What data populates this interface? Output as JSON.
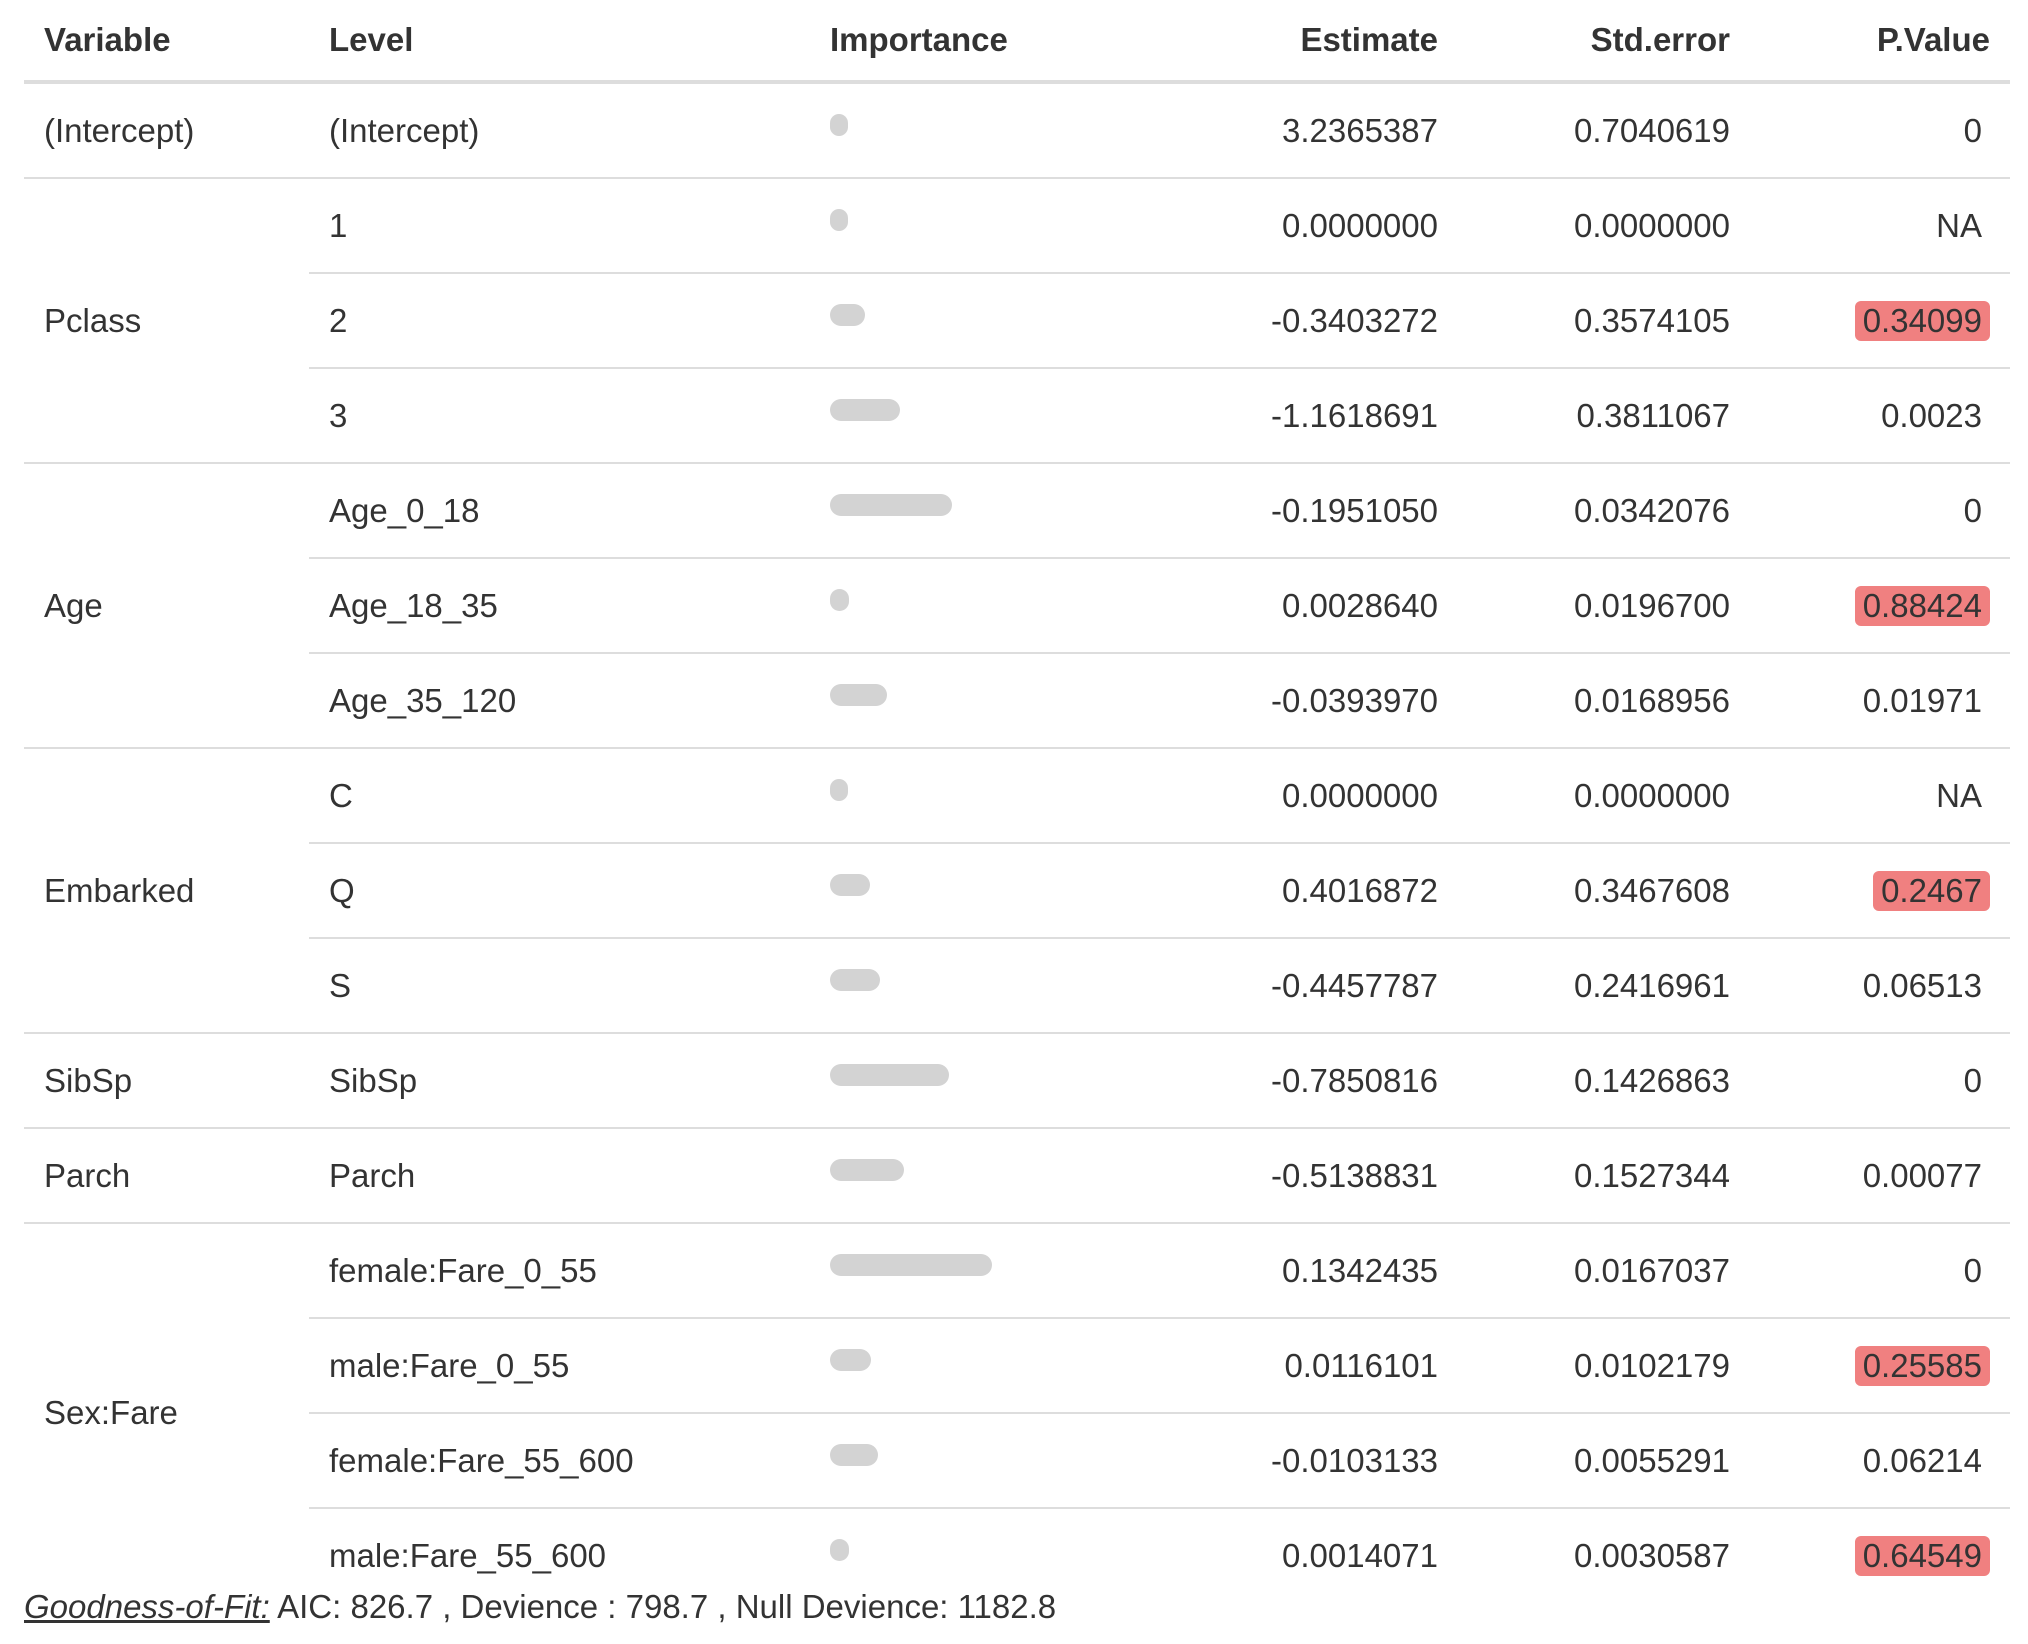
{
  "headers": {
    "variable": "Variable",
    "level": "Level",
    "importance": "Importance",
    "estimate": "Estimate",
    "std_error": "Std.error",
    "p_value": "P.Value"
  },
  "colors": {
    "importance_bar": "#d3d3d3",
    "significant_highlight": "#f08080",
    "rule": "#dddddd"
  },
  "rows": [
    {
      "variable": "(Intercept)",
      "level": "(Intercept)",
      "importance": 0.0,
      "estimate": "3.2365387",
      "std_error": "0.7040619",
      "p_value": "0",
      "highlight": false
    },
    {
      "variable": "Pclass",
      "level": "1",
      "importance": 0.0,
      "estimate": "0.0000000",
      "std_error": "0.0000000",
      "p_value": "NA",
      "highlight": false
    },
    {
      "variable": "Pclass",
      "level": "2",
      "importance": 0.12,
      "estimate": "-0.3403272",
      "std_error": "0.3574105",
      "p_value": "0.34099",
      "highlight": true
    },
    {
      "variable": "Pclass",
      "level": "3",
      "importance": 0.36,
      "estimate": "-1.1618691",
      "std_error": "0.3811067",
      "p_value": "0.0023",
      "highlight": false
    },
    {
      "variable": "Age",
      "level": "Age_0_18",
      "importance": 0.72,
      "estimate": "-0.1951050",
      "std_error": "0.0342076",
      "p_value": "0",
      "highlight": false
    },
    {
      "variable": "Age",
      "level": "Age_18_35",
      "importance": 0.01,
      "estimate": "0.0028640",
      "std_error": "0.0196700",
      "p_value": "0.88424",
      "highlight": true
    },
    {
      "variable": "Age",
      "level": "Age_35_120",
      "importance": 0.27,
      "estimate": "-0.0393970",
      "std_error": "0.0168956",
      "p_value": "0.01971",
      "highlight": false
    },
    {
      "variable": "Embarked",
      "level": "C",
      "importance": 0.0,
      "estimate": "0.0000000",
      "std_error": "0.0000000",
      "p_value": "NA",
      "highlight": false
    },
    {
      "variable": "Embarked",
      "level": "Q",
      "importance": 0.15,
      "estimate": "0.4016872",
      "std_error": "0.3467608",
      "p_value": "0.2467",
      "highlight": true
    },
    {
      "variable": "Embarked",
      "level": "S",
      "importance": 0.22,
      "estimate": "-0.4457787",
      "std_error": "0.2416961",
      "p_value": "0.06513",
      "highlight": false
    },
    {
      "variable": "SibSp",
      "level": "SibSp",
      "importance": 0.7,
      "estimate": "-0.7850816",
      "std_error": "0.1426863",
      "p_value": "0",
      "highlight": false
    },
    {
      "variable": "Parch",
      "level": "Parch",
      "importance": 0.39,
      "estimate": "-0.5138831",
      "std_error": "0.1527344",
      "p_value": "0.00077",
      "highlight": false
    },
    {
      "variable": "Sex:Fare",
      "level": "female:Fare_0_55",
      "importance": 1.0,
      "estimate": "0.1342435",
      "std_error": "0.0167037",
      "p_value": "0",
      "highlight": false
    },
    {
      "variable": "Sex:Fare",
      "level": "male:Fare_0_55",
      "importance": 0.16,
      "estimate": "0.0116101",
      "std_error": "0.0102179",
      "p_value": "0.25585",
      "highlight": true
    },
    {
      "variable": "Sex:Fare",
      "level": "female:Fare_55_600",
      "importance": 0.21,
      "estimate": "-0.0103133",
      "std_error": "0.0055291",
      "p_value": "0.06214",
      "highlight": false
    },
    {
      "variable": "Sex:Fare",
      "level": "male:Fare_55_600",
      "importance": 0.01,
      "estimate": "0.0014071",
      "std_error": "0.0030587",
      "p_value": "0.64549",
      "highlight": true
    }
  ],
  "groups": [
    {
      "label": "(Intercept)",
      "span": 1
    },
    {
      "label": "Pclass",
      "span": 3
    },
    {
      "label": "Age",
      "span": 3
    },
    {
      "label": "Embarked",
      "span": 3
    },
    {
      "label": "SibSp",
      "span": 1
    },
    {
      "label": "Parch",
      "span": 1
    },
    {
      "label": "Sex:Fare",
      "span": 4
    }
  ],
  "footer": {
    "label": "Goodness-of-Fit:",
    "text": " AIC: 826.7 , Devience : 798.7 , Null Devience: 1182.8"
  }
}
